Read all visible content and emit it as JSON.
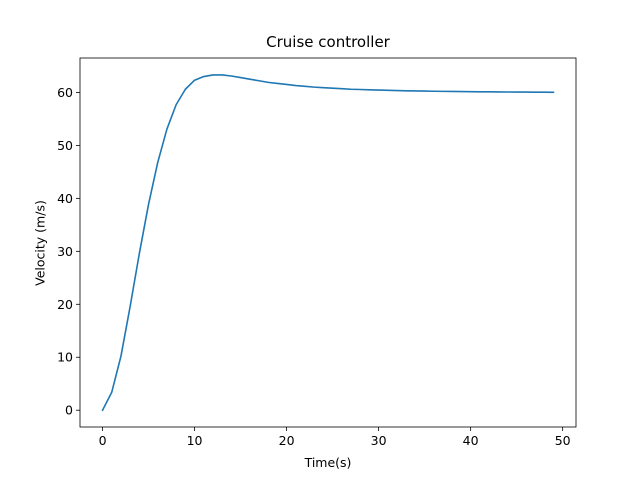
{
  "chart_data": {
    "type": "line",
    "title": "Cruise controller",
    "xlabel": "Time(s)",
    "ylabel": "Velocity (m/s)",
    "xlim": [
      -2.45,
      51.45
    ],
    "ylim": [
      -3.17,
      66.5
    ],
    "xticks": [
      0,
      10,
      20,
      30,
      40,
      50
    ],
    "yticks": [
      0,
      10,
      20,
      30,
      40,
      50,
      60
    ],
    "grid": false,
    "legend": "none",
    "series": [
      {
        "color": "#1f77b4",
        "x": [
          0,
          1,
          2,
          3,
          4,
          5,
          6,
          7,
          8,
          9,
          10,
          11,
          12,
          13,
          14,
          15,
          16,
          17,
          18,
          19,
          20,
          21,
          22,
          23,
          24,
          25,
          26,
          27,
          28,
          29,
          30,
          31,
          32,
          33,
          34,
          35,
          36,
          37,
          38,
          39,
          40,
          41,
          42,
          43,
          44,
          45,
          46,
          47,
          48,
          49
        ],
        "y": [
          0,
          3.4,
          10.2,
          19.6,
          29.6,
          38.9,
          46.8,
          53.1,
          57.7,
          60.6,
          62.3,
          63.0,
          63.3,
          63.3,
          63.1,
          62.8,
          62.5,
          62.2,
          61.9,
          61.7,
          61.5,
          61.3,
          61.15,
          61.0,
          60.9,
          60.8,
          60.7,
          60.6,
          60.55,
          60.5,
          60.45,
          60.4,
          60.35,
          60.3,
          60.28,
          60.25,
          60.22,
          60.2,
          60.18,
          60.16,
          60.14,
          60.12,
          60.11,
          60.1,
          60.08,
          60.07,
          60.06,
          60.05,
          60.04,
          60.03
        ]
      }
    ]
  }
}
